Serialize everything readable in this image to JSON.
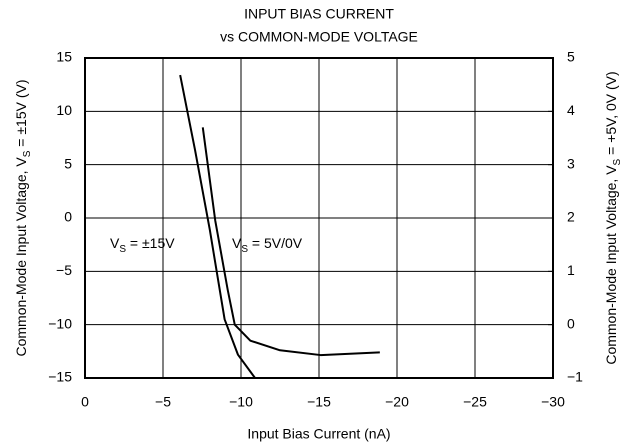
{
  "chart_data": {
    "type": "line",
    "title": [
      "INPUT BIAS CURRENT",
      "vs COMMON-MODE VOLTAGE"
    ],
    "x_label": "Input Bias Current (nA)",
    "y_label": [
      "Common-Mode Input Voltage, V",
      "S",
      " = ±15V (V)"
    ],
    "y2_label": [
      "Common-Mode Input Voltage, V",
      "S",
      " = +5V, 0V (V)"
    ],
    "xlim": [
      0,
      -30
    ],
    "xticks": [
      0,
      {
        "value": -5,
        "label": "−5"
      },
      {
        "value": -10,
        "label": "−10"
      },
      {
        "value": -15,
        "label": "−15"
      },
      {
        "value": -20,
        "label": "−20"
      },
      {
        "value": -25,
        "label": "−25"
      },
      {
        "value": -30,
        "label": "−30"
      }
    ],
    "ylim": [
      -15,
      15
    ],
    "yticks": [
      {
        "value": -15,
        "label": "−15"
      },
      {
        "value": -10,
        "label": "−10"
      },
      {
        "value": -5,
        "label": "−5"
      },
      0,
      5,
      10,
      15
    ],
    "y2lim": [
      -1,
      5
    ],
    "y2ticks": [
      {
        "value": -1,
        "label": "−1"
      },
      0,
      1,
      2,
      3,
      4,
      5
    ],
    "grid": true,
    "series": [
      {
        "label": [
          "V",
          "S",
          " = ±15V"
        ],
        "color": "#000000",
        "x": [
          -6.1,
          -7.05,
          -8.0,
          -8.95,
          -9.8,
          -10.9
        ],
        "values": [
          13.4,
          6.4,
          -1.1,
          -9.5,
          -12.8,
          -15
        ]
      },
      {
        "label": [
          "V",
          "S",
          " = 5V/0V"
        ],
        "color": "#000000",
        "axis": "y2",
        "x": [
          -7.55,
          -8.35,
          -9.15,
          -9.6,
          -10.6,
          -12.5,
          -15.1,
          -18.9
        ],
        "values": [
          3.7,
          1.95,
          0.65,
          0,
          -0.3,
          -0.48,
          -0.57,
          -0.52
        ]
      }
    ]
  }
}
